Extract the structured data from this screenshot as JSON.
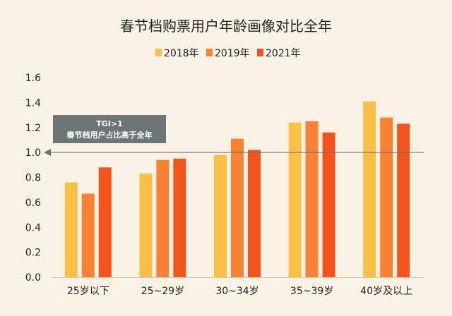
{
  "chart_data": {
    "type": "bar",
    "title": "春节档购票用户年龄画像对比全年",
    "xlabel": "",
    "ylabel": "",
    "categories": [
      "25岁以下",
      "25~29岁",
      "30~34岁",
      "35~39岁",
      "40岁及以上"
    ],
    "series": [
      {
        "name": "2018年",
        "color": "#fbbf45",
        "values": [
          0.76,
          0.83,
          0.98,
          1.24,
          1.41
        ]
      },
      {
        "name": "2019年",
        "color": "#f98132",
        "values": [
          0.67,
          0.94,
          1.11,
          1.25,
          1.28
        ]
      },
      {
        "name": "2021年",
        "color": "#f5531c",
        "values": [
          0.88,
          0.95,
          1.02,
          1.16,
          1.23
        ]
      }
    ],
    "ylim": [
      0,
      1.6
    ],
    "yticks": [
      "0.0",
      "0.2",
      "0.4",
      "0.6",
      "0.8",
      "1.0",
      "1.2",
      "1.4",
      "1.6"
    ],
    "grid": false,
    "legend_position": "top-center",
    "reference_line": {
      "value": 1.0,
      "color": "#6b7070"
    },
    "annotation": {
      "line1": "TGI>1",
      "line2": "春节档用户占比高于全年",
      "bg_color": "#6b7575"
    }
  }
}
